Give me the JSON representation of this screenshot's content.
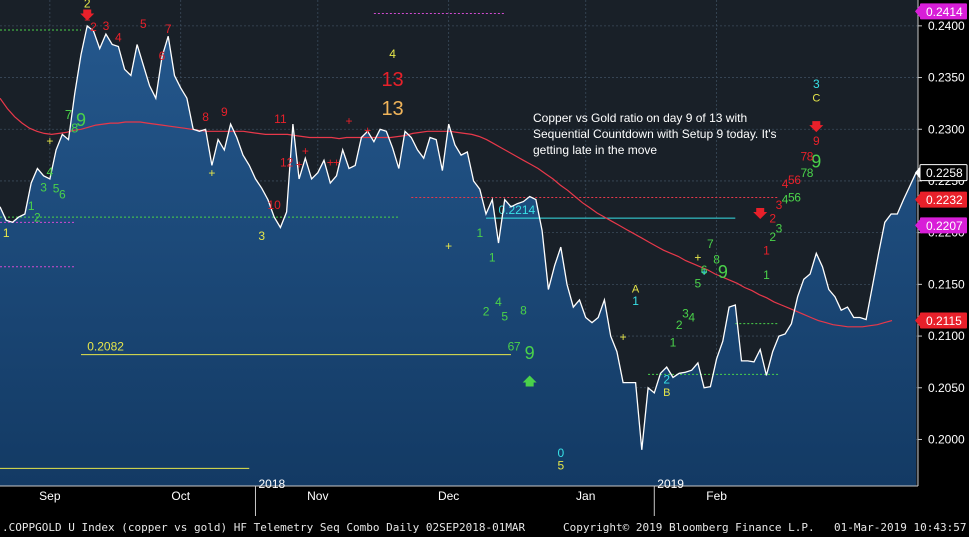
{
  "chart_data": {
    "type": "line",
    "xlim_index": [
      0,
      126
    ],
    "ylim": [
      0.1955,
      0.2425
    ],
    "y_ticks": [
      "0.2400",
      "0.2350",
      "0.2300",
      "0.2250",
      "0.2200",
      "0.2150",
      "0.2100",
      "0.2050",
      "0.2000"
    ],
    "y_tick_values": [
      0.24,
      0.235,
      0.23,
      0.225,
      0.22,
      0.215,
      0.21,
      0.205,
      0.2
    ],
    "month_labels": [
      {
        "label": "Sep",
        "i": 8
      },
      {
        "label": "Oct",
        "i": 29
      },
      {
        "label": "Nov",
        "i": 51
      },
      {
        "label": "Dec",
        "i": 72
      },
      {
        "label": "Jan",
        "i": 94
      },
      {
        "label": "Feb",
        "i": 115
      }
    ],
    "year_labels": [
      {
        "label": "2018",
        "i": 41
      },
      {
        "label": "2019",
        "i": 105
      }
    ],
    "series": [
      {
        "kind": "price",
        "color": "#ffffff",
        "values": [
          0.2225,
          0.2212,
          0.221,
          0.2215,
          0.2218,
          0.2248,
          0.2262,
          0.2255,
          0.2252,
          0.228,
          0.2295,
          0.229,
          0.2335,
          0.2372,
          0.24,
          0.2395,
          0.2378,
          0.2392,
          0.2382,
          0.238,
          0.2358,
          0.2352,
          0.2382,
          0.2362,
          0.2342,
          0.233,
          0.237,
          0.239,
          0.2352,
          0.234,
          0.233,
          0.23,
          0.2298,
          0.23,
          0.2265,
          0.229,
          0.228,
          0.2305,
          0.2292,
          0.2275,
          0.2265,
          0.2252,
          0.2243,
          0.2232,
          0.2215,
          0.2205,
          0.222,
          0.2305,
          0.2252,
          0.2272,
          0.2252,
          0.2258,
          0.227,
          0.2248,
          0.2255,
          0.228,
          0.2262,
          0.2265,
          0.2292,
          0.2298,
          0.2288,
          0.23,
          0.2298,
          0.2282,
          0.2262,
          0.2298,
          0.2292,
          0.228,
          0.2272,
          0.2292,
          0.229,
          0.226,
          0.2305,
          0.2285,
          0.2275,
          0.2278,
          0.225,
          0.2242,
          0.2218,
          0.2232,
          0.219,
          0.2232,
          0.2225,
          0.2228,
          0.223,
          0.2235,
          0.2232,
          0.2202,
          0.2145,
          0.2168,
          0.2186,
          0.215,
          0.2128,
          0.2135,
          0.2118,
          0.2113,
          0.2118,
          0.2135,
          0.21,
          0.2085,
          0.2055,
          0.2055,
          0.2055,
          0.199,
          0.205,
          0.2045,
          0.2064,
          0.207,
          0.206,
          0.2064,
          0.2065,
          0.2067,
          0.2074,
          0.205,
          0.2051,
          0.2078,
          0.2095,
          0.2128,
          0.213,
          0.2076,
          0.2076,
          0.2075,
          0.2087,
          0.2062,
          0.2085,
          0.21,
          0.2102,
          0.2112,
          0.2138,
          0.2155,
          0.216,
          0.218,
          0.2167,
          0.2145,
          0.2138,
          0.2125,
          0.2128,
          0.2118,
          0.2118,
          0.2116,
          0.2148,
          0.218,
          0.221,
          0.2218,
          0.2218,
          0.2232,
          0.2245,
          0.2258
        ]
      },
      {
        "kind": "moving-average",
        "color": "#e8384a",
        "values": [
          0.233,
          0.232,
          0.2312,
          0.2306,
          0.2301,
          0.2298,
          0.2296,
          0.2295,
          0.2296,
          0.2297,
          0.2299,
          0.23,
          0.2302,
          0.2304,
          0.2305,
          0.2306,
          0.2306,
          0.2307,
          0.2307,
          0.2307,
          0.2306,
          0.2305,
          0.2304,
          0.2303,
          0.2302,
          0.2301,
          0.23,
          0.2299,
          0.2298,
          0.2298,
          0.2298,
          0.2298,
          0.2298,
          0.2298,
          0.2297,
          0.2296,
          0.2295,
          0.2295,
          0.2295,
          0.2295,
          0.2294,
          0.2293,
          0.2292,
          0.2292,
          0.2292,
          0.2292,
          0.2291,
          0.2292,
          0.2292,
          0.2292,
          0.2292,
          0.2292,
          0.2292,
          0.2292,
          0.2293,
          0.2294,
          0.2296,
          0.2297,
          0.2298,
          0.2298,
          0.2298,
          0.2298,
          0.2297,
          0.2296,
          0.2295,
          0.2293,
          0.229,
          0.2286,
          0.2282,
          0.2278,
          0.2274,
          0.227,
          0.2266,
          0.2262,
          0.2257,
          0.2252,
          0.2246,
          0.2241,
          0.2235,
          0.2229,
          0.2224,
          0.2219,
          0.2215,
          0.2211,
          0.2207,
          0.2203,
          0.2199,
          0.2195,
          0.2191,
          0.2187,
          0.2183,
          0.218,
          0.2177,
          0.2173,
          0.217,
          0.2167,
          0.2164,
          0.216,
          0.2157,
          0.2154,
          0.2151,
          0.2147,
          0.2144,
          0.214,
          0.2137,
          0.2133,
          0.213,
          0.2127,
          0.2124,
          0.2121,
          0.2118,
          0.2115,
          0.2113,
          0.2111,
          0.211,
          0.2109,
          0.2109,
          0.2109,
          0.211,
          0.2111,
          0.2113,
          0.2115
        ]
      }
    ],
    "hlines": [
      {
        "label": "0.2214",
        "value": 0.2214,
        "color": "#37e0e6",
        "from_i": 78,
        "to_i": 118,
        "label_i": 80
      },
      {
        "label": "0.2082",
        "value": 0.2082,
        "color": "#e6e64a",
        "from_i": 13,
        "to_i": 82,
        "label_i": 14
      },
      {
        "label": "",
        "value": 0.2215,
        "color": "#4ad24a",
        "from_i": 0,
        "to_i": 64,
        "dashed": true
      },
      {
        "label": "",
        "value": 0.2396,
        "color": "#4ad24a",
        "from_i": 0,
        "to_i": 13,
        "dashed": true
      },
      {
        "label": "",
        "value": 0.2412,
        "color": "#d14ad1",
        "from_i": 60,
        "to_i": 81,
        "dashed": true
      },
      {
        "label": "",
        "value": 0.221,
        "color": "#d14ad1",
        "from_i": 0,
        "to_i": 12,
        "dashed": true
      },
      {
        "label": "",
        "value": 0.2167,
        "color": "#d14ad1",
        "from_i": 0,
        "to_i": 12,
        "dashed": true
      },
      {
        "label": "",
        "value": 0.2234,
        "color": "#e8384a",
        "from_i": 66,
        "to_i": 125,
        "dashed": true
      },
      {
        "label": "",
        "value": 0.2112,
        "color": "#4ad24a",
        "from_i": 118,
        "to_i": 125,
        "dashed": true
      },
      {
        "label": "",
        "value": 0.2063,
        "color": "#4ad24a",
        "from_i": 104,
        "to_i": 125,
        "dashed": true
      },
      {
        "label": "",
        "value": 0.1972,
        "color": "#e6e64a",
        "from_i": 0,
        "to_i": 40
      }
    ],
    "price_tags": [
      {
        "label": "0.2414",
        "value": 0.2414,
        "bg": "#d81ed8",
        "fg": "#ffffff"
      },
      {
        "label": "0.2258",
        "value": 0.2258,
        "bg": "#000000",
        "fg": "#ffffff",
        "border": "#ffffff"
      },
      {
        "label": "0.2232",
        "value": 0.2232,
        "bg": "#e8202a",
        "fg": "#ffffff"
      },
      {
        "label": "0.2207",
        "value": 0.2207,
        "bg": "#d81ed8",
        "fg": "#ffffff"
      },
      {
        "label": "0.2115",
        "value": 0.2115,
        "bg": "#e8202a",
        "fg": "#ffffff"
      }
    ],
    "markers": [
      {
        "t": "1",
        "i": 1,
        "v": 0.2196,
        "c": "#e6e64a",
        "s": 12
      },
      {
        "t": "1",
        "i": 5,
        "v": 0.2222,
        "c": "#4ad24a",
        "s": 12
      },
      {
        "t": "2",
        "i": 6,
        "v": 0.2211,
        "c": "#4ad24a",
        "s": 12
      },
      {
        "t": "3",
        "i": 7,
        "v": 0.224,
        "c": "#4ad24a",
        "s": 12
      },
      {
        "t": "4",
        "i": 8,
        "v": 0.2255,
        "c": "#4ad24a",
        "s": 12
      },
      {
        "t": "5",
        "i": 9,
        "v": 0.2239,
        "c": "#4ad24a",
        "s": 12
      },
      {
        "t": "6",
        "i": 10,
        "v": 0.2233,
        "c": "#4ad24a",
        "s": 12
      },
      {
        "t": "+",
        "i": 8,
        "v": 0.2285,
        "c": "#e6e64a",
        "s": 12
      },
      {
        "t": "7",
        "i": 11,
        "v": 0.231,
        "c": "#4ad24a",
        "s": 13
      },
      {
        "t": "8",
        "i": 12,
        "v": 0.2297,
        "c": "#4ad24a",
        "s": 13
      },
      {
        "t": "9",
        "i": 13,
        "v": 0.2303,
        "c": "#4ad24a",
        "s": 18
      },
      {
        "t": "2",
        "i": 14,
        "v": 0.2418,
        "c": "#e6e64a",
        "s": 12
      },
      {
        "t": "1",
        "i": 14,
        "v": 0.2405,
        "c": "#e8202a",
        "s": 12
      },
      {
        "t": "2",
        "i": 15,
        "v": 0.2395,
        "c": "#e8202a",
        "s": 12
      },
      {
        "t": "3",
        "i": 17,
        "v": 0.2396,
        "c": "#e8202a",
        "s": 12
      },
      {
        "t": "4",
        "i": 19,
        "v": 0.2385,
        "c": "#e8202a",
        "s": 12
      },
      {
        "t": "5",
        "i": 23,
        "v": 0.2398,
        "c": "#e8202a",
        "s": 12
      },
      {
        "t": "6",
        "i": 26,
        "v": 0.2367,
        "c": "#e8202a",
        "s": 12
      },
      {
        "t": "7",
        "i": 27,
        "v": 0.2393,
        "c": "#e8202a",
        "s": 12
      },
      {
        "t": "8",
        "i": 33,
        "v": 0.2308,
        "c": "#e8202a",
        "s": 12
      },
      {
        "t": "9",
        "i": 36,
        "v": 0.2313,
        "c": "#e8202a",
        "s": 12
      },
      {
        "t": "+",
        "i": 34,
        "v": 0.2254,
        "c": "#e6e64a",
        "s": 12
      },
      {
        "t": "10",
        "i": 44,
        "v": 0.2223,
        "c": "#e8202a",
        "s": 12
      },
      {
        "t": "3",
        "i": 42,
        "v": 0.2193,
        "c": "#e6e64a",
        "s": 12
      },
      {
        "t": "11",
        "i": 45,
        "v": 0.2306,
        "c": "#e8202a",
        "s": 12
      },
      {
        "t": "12",
        "i": 46,
        "v": 0.2264,
        "c": "#e8202a",
        "s": 12
      },
      {
        "t": "+",
        "i": 48,
        "v": 0.2262,
        "c": "#e8202a",
        "s": 12
      },
      {
        "t": "+",
        "i": 49,
        "v": 0.2275,
        "c": "#e8202a",
        "s": 12
      },
      {
        "t": "+",
        "i": 53,
        "v": 0.2264,
        "c": "#e8202a",
        "s": 12
      },
      {
        "t": "+",
        "i": 54,
        "v": 0.2264,
        "c": "#e8202a",
        "s": 12
      },
      {
        "t": "+",
        "i": 56,
        "v": 0.2304,
        "c": "#e8202a",
        "s": 12
      },
      {
        "t": "+",
        "i": 59,
        "v": 0.2295,
        "c": "#e8202a",
        "s": 12
      },
      {
        "t": "4",
        "i": 63,
        "v": 0.2369,
        "c": "#e6e64a",
        "s": 12
      },
      {
        "t": "13",
        "i": 63,
        "v": 0.2342,
        "c": "#e8202a",
        "s": 20
      },
      {
        "t": "13",
        "i": 63,
        "v": 0.2314,
        "c": "#f0b45a",
        "s": 20
      },
      {
        "t": "+",
        "i": 72,
        "v": 0.2183,
        "c": "#e6e64a",
        "s": 12
      },
      {
        "t": "1",
        "i": 77,
        "v": 0.2196,
        "c": "#4ad24a",
        "s": 12
      },
      {
        "t": "1",
        "i": 79,
        "v": 0.2172,
        "c": "#4ad24a",
        "s": 12
      },
      {
        "t": "2",
        "i": 78,
        "v": 0.212,
        "c": "#4ad24a",
        "s": 12
      },
      {
        "t": "4",
        "i": 80,
        "v": 0.2129,
        "c": "#4ad24a",
        "s": 12
      },
      {
        "t": "5",
        "i": 81,
        "v": 0.2115,
        "c": "#4ad24a",
        "s": 12
      },
      {
        "t": "6",
        "i": 82,
        "v": 0.2086,
        "c": "#4ad24a",
        "s": 12
      },
      {
        "t": "7",
        "i": 83,
        "v": 0.2086,
        "c": "#4ad24a",
        "s": 12
      },
      {
        "t": "8",
        "i": 84,
        "v": 0.2121,
        "c": "#4ad24a",
        "s": 12
      },
      {
        "t": "9",
        "i": 85,
        "v": 0.2078,
        "c": "#4ad24a",
        "s": 18
      },
      {
        "t": "0",
        "i": 90,
        "v": 0.1983,
        "c": "#37e0e6",
        "s": 12
      },
      {
        "t": "5",
        "i": 90,
        "v": 0.1971,
        "c": "#e6e64a",
        "s": 12
      },
      {
        "t": "+",
        "i": 100,
        "v": 0.2095,
        "c": "#e6e64a",
        "s": 12
      },
      {
        "t": "A",
        "i": 102,
        "v": 0.2142,
        "c": "#e6e64a",
        "s": 11
      },
      {
        "t": "1",
        "i": 102,
        "v": 0.213,
        "c": "#37e0e6",
        "s": 12
      },
      {
        "t": "2",
        "i": 107,
        "v": 0.2054,
        "c": "#37e0e6",
        "s": 12
      },
      {
        "t": "B",
        "i": 107,
        "v": 0.2042,
        "c": "#e6e64a",
        "s": 11
      },
      {
        "t": "1",
        "i": 108,
        "v": 0.209,
        "c": "#4ad24a",
        "s": 12
      },
      {
        "t": "2",
        "i": 109,
        "v": 0.2107,
        "c": "#4ad24a",
        "s": 12
      },
      {
        "t": "3",
        "i": 110,
        "v": 0.2118,
        "c": "#4ad24a",
        "s": 12
      },
      {
        "t": "4",
        "i": 111,
        "v": 0.2114,
        "c": "#4ad24a",
        "s": 12
      },
      {
        "t": "5",
        "i": 112,
        "v": 0.2147,
        "c": "#4ad24a",
        "s": 12
      },
      {
        "t": "6",
        "i": 113,
        "v": 0.216,
        "c": "#4ad24a",
        "s": 12
      },
      {
        "t": "7",
        "i": 114,
        "v": 0.2185,
        "c": "#4ad24a",
        "s": 12
      },
      {
        "t": "8",
        "i": 115,
        "v": 0.217,
        "c": "#4ad24a",
        "s": 12
      },
      {
        "t": "9",
        "i": 116,
        "v": 0.2156,
        "c": "#4ad24a",
        "s": 18
      },
      {
        "t": "+",
        "i": 112,
        "v": 0.2172,
        "c": "#e6e64a",
        "s": 12
      },
      {
        "t": "+",
        "i": 113,
        "v": 0.2158,
        "c": "#37e0e6",
        "s": 12
      },
      {
        "t": "1",
        "i": 123,
        "v": 0.2155,
        "c": "#4ad24a",
        "s": 12
      },
      {
        "t": "2",
        "i": 124,
        "v": 0.2192,
        "c": "#4ad24a",
        "s": 12
      },
      {
        "t": "3",
        "i": 125,
        "v": 0.22,
        "c": "#4ad24a",
        "s": 12
      },
      {
        "t": "4",
        "i": 126,
        "v": 0.2228,
        "c": "#4ad24a",
        "s": 12
      },
      {
        "t": "5",
        "i": 127,
        "v": 0.223,
        "c": "#4ad24a",
        "s": 12
      },
      {
        "t": "6",
        "i": 128,
        "v": 0.223,
        "c": "#4ad24a",
        "s": 12
      },
      {
        "t": "7",
        "i": 129,
        "v": 0.2254,
        "c": "#4ad24a",
        "s": 12
      },
      {
        "t": "8",
        "i": 130,
        "v": 0.2254,
        "c": "#4ad24a",
        "s": 12
      },
      {
        "t": "9",
        "i": 131,
        "v": 0.2263,
        "c": "#4ad24a",
        "s": 18
      },
      {
        "t": "1",
        "i": 123,
        "v": 0.2179,
        "c": "#e8202a",
        "s": 12
      },
      {
        "t": "2",
        "i": 124,
        "v": 0.221,
        "c": "#e8202a",
        "s": 12
      },
      {
        "t": "3",
        "i": 125,
        "v": 0.2223,
        "c": "#e8202a",
        "s": 12
      },
      {
        "t": "4",
        "i": 126,
        "v": 0.2243,
        "c": "#e8202a",
        "s": 12
      },
      {
        "t": "5",
        "i": 127,
        "v": 0.2247,
        "c": "#e8202a",
        "s": 12
      },
      {
        "t": "6",
        "i": 128,
        "v": 0.2247,
        "c": "#e8202a",
        "s": 12
      },
      {
        "t": "7",
        "i": 129,
        "v": 0.227,
        "c": "#e8202a",
        "s": 12
      },
      {
        "t": "8",
        "i": 130,
        "v": 0.227,
        "c": "#e8202a",
        "s": 12
      },
      {
        "t": "9",
        "i": 131,
        "v": 0.2285,
        "c": "#e8202a",
        "s": 12
      },
      {
        "t": "3",
        "i": 131,
        "v": 0.234,
        "c": "#37e0e6",
        "s": 12
      },
      {
        "t": "C",
        "i": 131,
        "v": 0.2327,
        "c": "#e6e64a",
        "s": 11
      }
    ],
    "arrows": [
      {
        "dir": "down",
        "i": 14,
        "v": 0.241,
        "c": "#e8202a"
      },
      {
        "dir": "up",
        "i": 85,
        "v": 0.2057,
        "c": "#4ad24a"
      },
      {
        "dir": "down",
        "i": 122,
        "v": 0.2218,
        "c": "#e8202a"
      },
      {
        "dir": "down",
        "i": 131,
        "v": 0.2302,
        "c": "#e8202a"
      }
    ]
  },
  "annotation": [
    "Copper vs Gold ratio on day 9 of 13 with",
    "Sequential Countdown with Setup 9 today.  It's",
    "getting late in the move"
  ],
  "footer": {
    "left": ".COPPGOLD U Index (copper vs gold) HF Telemetry Seq Combo  Daily 02SEP2018-01MAR",
    "center": "Copyright© 2019 Bloomberg Finance L.P.",
    "right": "01-Mar-2019 10:43:57"
  }
}
